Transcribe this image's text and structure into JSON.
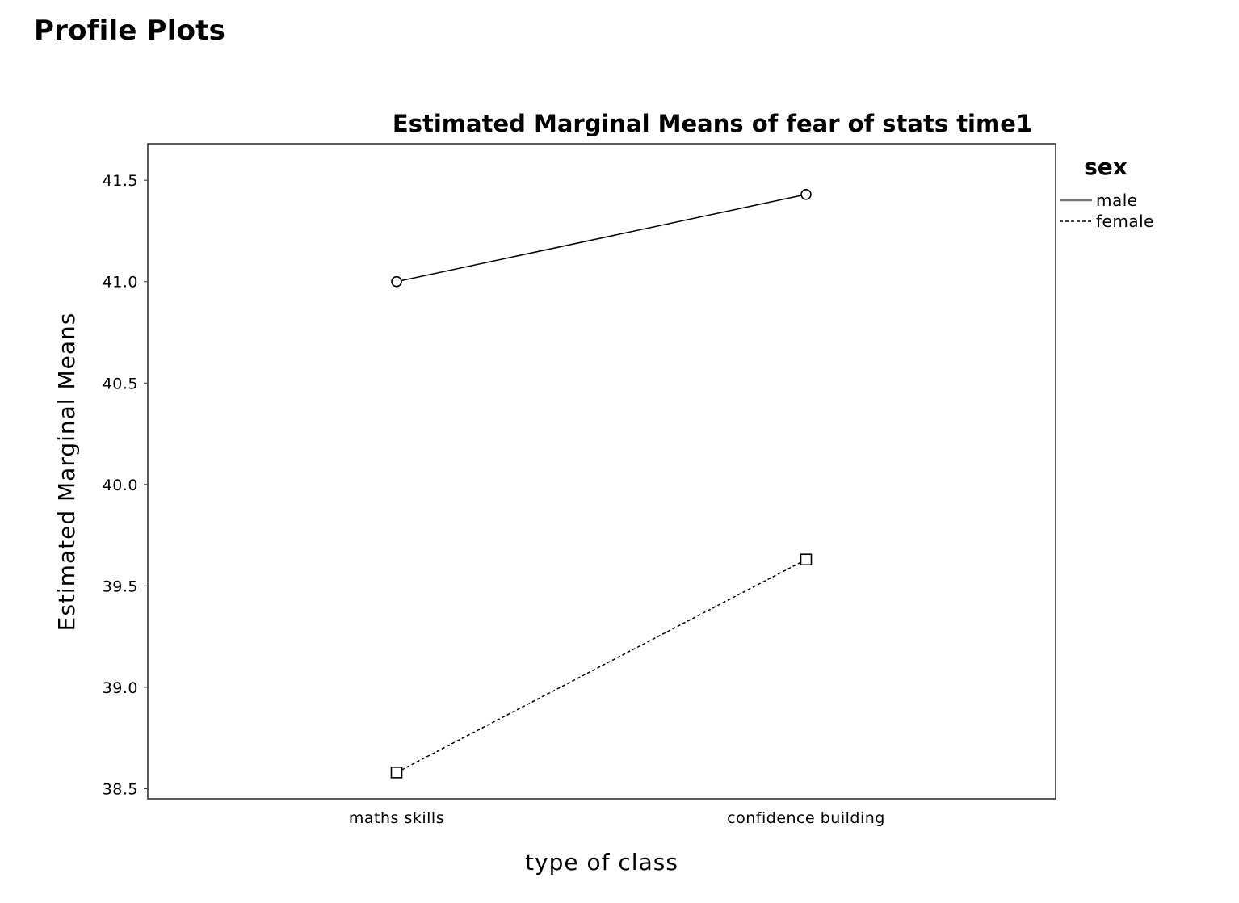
{
  "page": {
    "heading": "Profile Plots"
  },
  "chart_data": {
    "type": "line",
    "title": "Estimated Marginal Means of fear of stats time1",
    "xlabel": "type of class",
    "ylabel": "Estimated Marginal Means",
    "categories": [
      "maths skills",
      "confidence building"
    ],
    "ylim": [
      38.45,
      41.68
    ],
    "yticks": [
      38.5,
      39.0,
      39.5,
      40.0,
      40.5,
      41.0,
      41.5
    ],
    "ytick_labels": [
      "38.5",
      "39.0",
      "39.5",
      "40.0",
      "40.5",
      "41.0",
      "41.5"
    ],
    "grid": false,
    "legend": {
      "title": "sex",
      "placement": "right"
    },
    "series": [
      {
        "name": "male",
        "values": [
          41.0,
          41.43
        ],
        "marker": "circle",
        "line": "solid",
        "color": "#000000"
      },
      {
        "name": "female",
        "values": [
          38.58,
          39.63
        ],
        "marker": "square",
        "line": "dashed",
        "color": "#000000"
      }
    ]
  }
}
